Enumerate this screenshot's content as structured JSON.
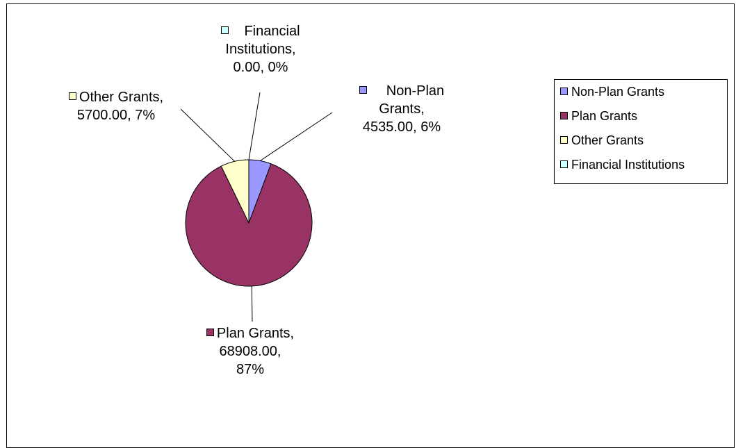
{
  "chart_data": {
    "type": "pie",
    "title": "",
    "legend_position": "right",
    "slices": [
      {
        "name": "Non-Plan Grants",
        "value": 4535.0,
        "value_text": "4535.00",
        "percent_text": "6%",
        "color": "#9999ff"
      },
      {
        "name": "Plan Grants",
        "value": 68908.0,
        "value_text": "68908.00",
        "percent_text": "87%",
        "color": "#993366"
      },
      {
        "name": "Other Grants",
        "value": 5700.0,
        "value_text": "5700.00",
        "percent_text": "7%",
        "color": "#ffffcc"
      },
      {
        "name": "Financial Institutions",
        "value": 0.0,
        "value_text": "0.00",
        "percent_text": "0%",
        "color": "#ccffff"
      }
    ],
    "data_labels": [
      {
        "lines": [
          "Non-Plan",
          "Grants,",
          "4535.00, 6%"
        ]
      },
      {
        "lines": [
          "Plan Grants,",
          "68908.00,",
          "87%"
        ]
      },
      {
        "lines": [
          "Other Grants,",
          "5700.00, 7%"
        ]
      },
      {
        "lines": [
          "Financial",
          "Institutions,",
          "0.00, 0%"
        ]
      }
    ],
    "legend": [
      "Non-Plan Grants",
      "Plan Grants",
      "Other Grants",
      "Financial Institutions"
    ]
  }
}
